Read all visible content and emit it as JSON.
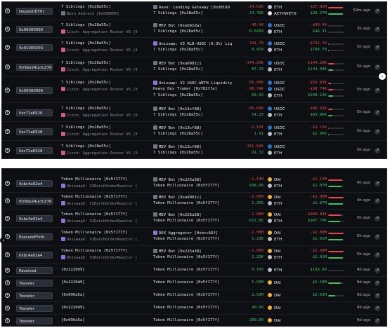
{
  "colors": {
    "negative": "#e24b4b",
    "positive": "#3fbf63",
    "eth": "#b8bfcc",
    "usdc": "#2775ca",
    "dai": "#f5b52e",
    "weth": "#e8e8e8"
  },
  "top": {
    "rows": [
      {
        "tag": "Deposit(ETH)",
        "from": "7 Siblings [0x28a55c]",
        "from_sub": "Busn Address [0x000000]",
        "to1": "Aave: Lending Gateway [0xd0160",
        "to2": "7 Siblings [0x28a55c]",
        "amounts": [
          {
            "v": "-24.62K",
            "s": "neg",
            "t": "ETH"
          },
          {
            "v": "24.76K",
            "s": "pos",
            "t": "AETHWETH"
          }
        ],
        "values": [
          {
            "v": "-$37.92M",
            "s": "neg",
            "b": 0.95
          },
          {
            "v": "$38.27M",
            "s": "pos",
            "b": 0.95
          }
        ],
        "time": "59m ago",
        "sub_icon": "g",
        "to_icon": "g"
      },
      {
        "tag": "0x00000000",
        "from": "7 Siblings [0x28a55c]",
        "from_sub": "1inch: Aggregation Router V6 [0",
        "to1": "MEV Bot [0xeb61da]",
        "to2": "7 Siblings [0x28a55c]",
        "amounts": [
          {
            "v": "-49.44",
            "s": "neg",
            "t": "USDC"
          },
          {
            "v": "0.0299",
            "s": "pos",
            "t": "ETH"
          }
        ],
        "values": [
          {
            "v": "-$49.44",
            "s": "neg",
            "b": 0
          },
          {
            "v": "$46.31",
            "s": "pos",
            "b": 0
          }
        ],
        "time": "3h ago",
        "sub_icon": "r",
        "to_icon": "g"
      },
      {
        "tag": "0x01000203",
        "from": "7 Siblings [0x28a55c]",
        "from_sub": "1inch: Aggregation Router V6 [0",
        "to1": "Uniswap: V3 RLB-USDC (0.3%) Liq",
        "to2": "7 Siblings [0x28a55c]",
        "amounts": [
          {
            "v": "-791.79",
            "s": "neg",
            "t": "USDC"
          },
          {
            "v": "0.479",
            "s": "pos",
            "t": "ETH"
          }
        ],
        "values": [
          {
            "v": "-$791.78",
            "s": "neg",
            "b": 0.02
          },
          {
            "v": "$749.79",
            "s": "pos",
            "b": 0.02
          }
        ],
        "time": "5h ago",
        "sub_icon": "r",
        "to_icon": "p"
      },
      {
        "tag": "f0r9be24ucfcZ765...",
        "from": "7 Siblings [0x28a55c]",
        "from_sub": "1inch: Aggregation Router V6 [0",
        "to1": "MEV Bot [0xa0901c]",
        "to2": "7 Siblings [0x28a55c]",
        "amounts": [
          {
            "v": "-144.29K",
            "s": "neg",
            "t": "USDC"
          },
          {
            "v": "87.29",
            "s": "pos",
            "t": "ETH"
          }
        ],
        "values": [
          {
            "v": "-$144.28K",
            "s": "neg",
            "b": 0.35
          },
          {
            "v": "$134.99K",
            "s": "pos",
            "b": 0.3
          }
        ],
        "time": "5h ago",
        "sub_icon": "r",
        "to_icon": "g"
      },
      {
        "tag": "0x00000000",
        "from": "7 Siblings [0x28a55c]",
        "from_sub": "1inch: Aggregation Router V6 [0",
        "to1": "Uniswap: V2 USDC-WETH Liquidity",
        "to2": "Heavy Dex Trader [0x702ffa]",
        "to3": "7 Siblings [0x28a55c]",
        "amounts": [
          {
            "v": "-56.86K",
            "s": "neg",
            "t": "USDC"
          },
          {
            "v": "-98.74K",
            "s": "neg",
            "t": "USDC"
          },
          {
            "v": "69.92",
            "s": "pos",
            "t": "ETH"
          }
        ],
        "values": [
          {
            "v": "-$56.83K",
            "s": "neg",
            "b": 0.2
          },
          {
            "v": "-$98.74K",
            "s": "neg",
            "b": 0.3
          },
          {
            "v": "$108.13K",
            "s": "pos",
            "b": 0.3
          }
        ],
        "time": "5h ago",
        "sub_icon": "r",
        "to_icon": "p"
      },
      {
        "tag": "0xc71a6528",
        "from": "7 Siblings [0x28a55c]",
        "from_sub": "1inch: Aggregation Router V6 [0",
        "to1": "MEV Bot [0x13cf88]",
        "to2": "7 Siblings [0x28a55c]",
        "amounts": [
          {
            "v": "-89.66K",
            "s": "neg",
            "t": "USDC"
          },
          {
            "v": "54.23",
            "s": "pos",
            "t": "ETH"
          }
        ],
        "values": [
          {
            "v": "-$89.63K",
            "s": "neg",
            "b": 0.25
          },
          {
            "v": "$83.86K",
            "s": "pos",
            "b": 0.25
          }
        ],
        "time": "5h ago",
        "sub_icon": "r",
        "to_icon": "g"
      },
      {
        "tag": "0xc71a6528",
        "from": "7 Siblings [0x28a55c]",
        "from_sub": "1inch: Aggregation Router V6 [0",
        "to1": "MEV Bot [0x13cf88]",
        "to2": "7 Siblings [0x28a55c]",
        "amounts": [
          {
            "v": "-3.15K",
            "s": "neg",
            "t": "USDC"
          },
          {
            "v": "1.91",
            "s": "pos",
            "t": "ETH"
          }
        ],
        "values": [
          {
            "v": "-$3.15K",
            "s": "neg",
            "b": 0.05
          },
          {
            "v": "$2.96K",
            "s": "pos",
            "b": 0.05
          }
        ],
        "time": "5h ago",
        "sub_icon": "r",
        "to_icon": "g"
      },
      {
        "tag": "0xc71a6528",
        "from": "7 Siblings [0x28a55c]",
        "from_sub": "1inch: Aggregation Router V6 [0",
        "to1": "MEV Bot [0x13cf88]",
        "to2": "7 Siblings [0x28a55c]",
        "amounts": [
          {
            "v": "-151.62K",
            "s": "neg",
            "t": "USDC"
          },
          {
            "v": "91.72",
            "s": "pos",
            "t": "ETH"
          }
        ],
        "values": [],
        "time": "5h ago",
        "sub_icon": "r",
        "to_icon": "g"
      }
    ]
  },
  "bottom": {
    "rows": [
      {
        "tag": "0xbc4a02e4",
        "from": "Token Millionaire [0x5f177f]",
        "from_sub": "UniswapX: V2DutchOrderReactor [",
        "to1": "MEV Bot [0x225a38]",
        "to2": "Token Millionaire [0x5f177f]",
        "amounts": [
          {
            "v": "-1.13M",
            "s": "neg",
            "t": "DAI"
          },
          {
            "v": "698.66",
            "s": "pos",
            "t": "ETH"
          }
        ],
        "values": [
          {
            "v": "-$1.13M",
            "s": "neg",
            "b": 0.9
          },
          {
            "v": "$1.07M",
            "s": "pos",
            "b": 0.85
          }
        ],
        "time": "4h ago",
        "sub_icon": "p",
        "to_icon": "g"
      },
      {
        "tag": "f0r9be24ucfcZ765...",
        "from": "Token Millionaire [0x5f177f]",
        "from_sub": "UniswapX: V2DutchOrderReactor [",
        "to1": "MEV Bot [0xa0901c]",
        "to2": "Token Millionaire [0x5f177f]",
        "amounts": [
          {
            "v": "-2.00M",
            "s": "neg",
            "t": "DAI"
          },
          {
            "v": "1.25K",
            "s": "pos",
            "t": "ETH"
          }
        ],
        "values": [
          {
            "v": "-$2.00M",
            "s": "neg",
            "b": 1
          },
          {
            "v": "$1.87M",
            "s": "pos",
            "b": 0.95
          }
        ],
        "time": "4h ago",
        "sub_icon": "p",
        "to_icon": "g"
      },
      {
        "tag": "0xbc4a02e4",
        "from": "Token Millionaire [0x5f177f]",
        "from_sub": "UniswapX: V2DutchOrderReactor [",
        "to1": "MEV Bot [0x225a38]",
        "to2": "Token Millionaire [0x5f177f]",
        "amounts": [
          {
            "v": "-1.00M",
            "s": "neg",
            "t": "DAI"
          },
          {
            "v": "612.85",
            "s": "pos",
            "t": "ETH"
          }
        ],
        "values": [
          {
            "v": "-$999.84K",
            "s": "neg",
            "b": 0.8
          },
          {
            "v": "$947.79K",
            "s": "pos",
            "b": 0.75
          }
        ],
        "time": "5h ago",
        "sub_icon": "p",
        "to_icon": "g"
      },
      {
        "tag": "ExecuteFFsYo",
        "from": "Token Millionaire [0x5f177f]",
        "from_sub": "UniswapX: V2DutchOrderReactor [",
        "to1": "DEX Aggregator [0xbcc66f]",
        "to2": "Token Millionaire [0x5f177f]",
        "amounts": [
          {
            "v": "-2.00M",
            "s": "neg",
            "t": "DAI"
          },
          {
            "v": "1.23K",
            "s": "pos",
            "t": "ETH"
          }
        ],
        "values": [
          {
            "v": "-$2.00M",
            "s": "neg",
            "b": 1
          },
          {
            "v": "$1.91M",
            "s": "pos",
            "b": 0.95
          }
        ],
        "time": "5h ago",
        "sub_icon": "p",
        "to_icon": "p"
      },
      {
        "tag": "0xbc4a02e4",
        "from": "Token Millionaire [0x5f177f]",
        "from_sub": "UniswapX: V2DutchOrderReactor [",
        "to1": "MEV Bot [0x225a38]",
        "to2": "Token Millionaire [0x5f177f]",
        "amounts": [
          {
            "v": "-2.00M",
            "s": "neg",
            "t": "DAI"
          },
          {
            "v": "1.23K",
            "s": "pos",
            "t": "ETH"
          }
        ],
        "values": [
          {
            "v": "-$2.00M",
            "s": "neg",
            "b": 1
          },
          {
            "v": "$1.91M",
            "s": "pos",
            "b": 0.95
          }
        ],
        "time": "5h ago",
        "sub_icon": "p",
        "to_icon": "g"
      },
      {
        "tag": "Received",
        "from": "[0x2220d9]",
        "to1": "Token Millionaire [0x5f177f]",
        "amounts": [
          {
            "v": "0.100",
            "s": "pos",
            "t": "ETH"
          }
        ],
        "values": [
          {
            "v": "$189.89",
            "s": "pos",
            "b": 0
          }
        ],
        "time": "9d ago"
      },
      {
        "tag": "Transfer",
        "from": "[0x2220d9]",
        "to1": "Token Millionaire [0x5f177f]",
        "amounts": [
          {
            "v": "5.50M",
            "s": "pos",
            "t": "DAI"
          }
        ],
        "values": [
          {
            "v": "$5.50M",
            "s": "pos",
            "b": 0.8
          }
        ],
        "time": "9d ago"
      },
      {
        "tag": "Transfer",
        "from": "[0x096a5a]",
        "to1": "Token Millionaire [0x5f177f]",
        "amounts": [
          {
            "v": "2.63M",
            "s": "pos",
            "t": "DAI"
          }
        ],
        "values": [
          {
            "v": "$2.63M",
            "s": "pos",
            "b": 0.45
          }
        ],
        "time": "9d ago"
      },
      {
        "tag": "Transfer",
        "from": "[0x2220d9]",
        "to1": "Token Millionaire [0x5f177f]",
        "amounts": [
          {
            "v": "40.00",
            "s": "pos",
            "t": "DAI"
          }
        ],
        "values": [],
        "time": "9d ago"
      },
      {
        "tag": "Transfer",
        "from": "[0x096a5a]",
        "to1": "Token Millionaire [0x5f177f]",
        "amounts": [
          {
            "v": "200.00",
            "s": "pos",
            "t": "DAI"
          }
        ],
        "values": [],
        "time": "9d ago"
      }
    ]
  }
}
